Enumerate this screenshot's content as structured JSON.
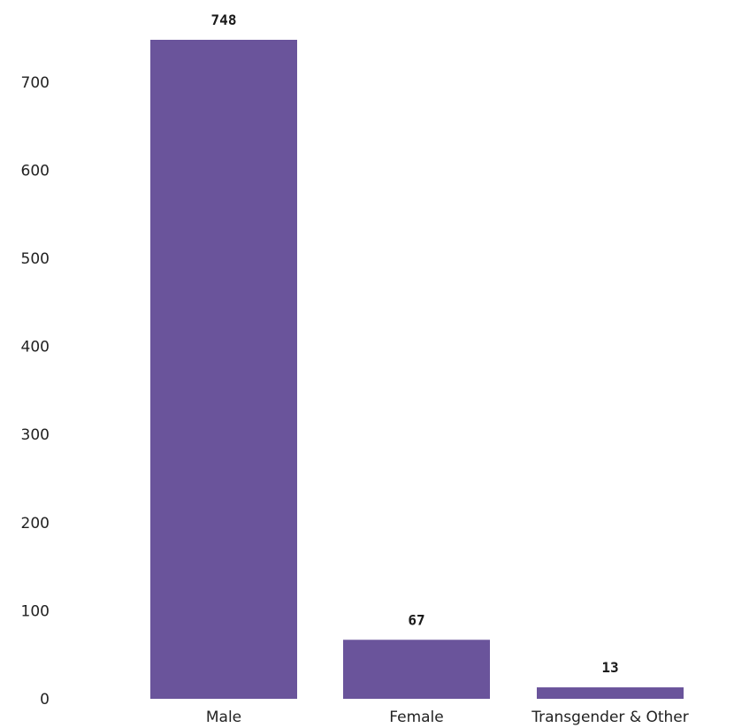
{
  "chart_data": {
    "type": "bar",
    "categories": [
      "Male",
      "Female",
      "Transgender & Other"
    ],
    "values": [
      748,
      67,
      13
    ],
    "data_labels": [
      "748",
      "67",
      "13"
    ],
    "yticks": [
      0,
      100,
      200,
      300,
      400,
      500,
      600,
      700
    ],
    "ylim": [
      0,
      760
    ],
    "grid": false,
    "legend": "none",
    "bar_color": "#6a549b",
    "title": "",
    "xlabel": "",
    "ylabel": ""
  }
}
